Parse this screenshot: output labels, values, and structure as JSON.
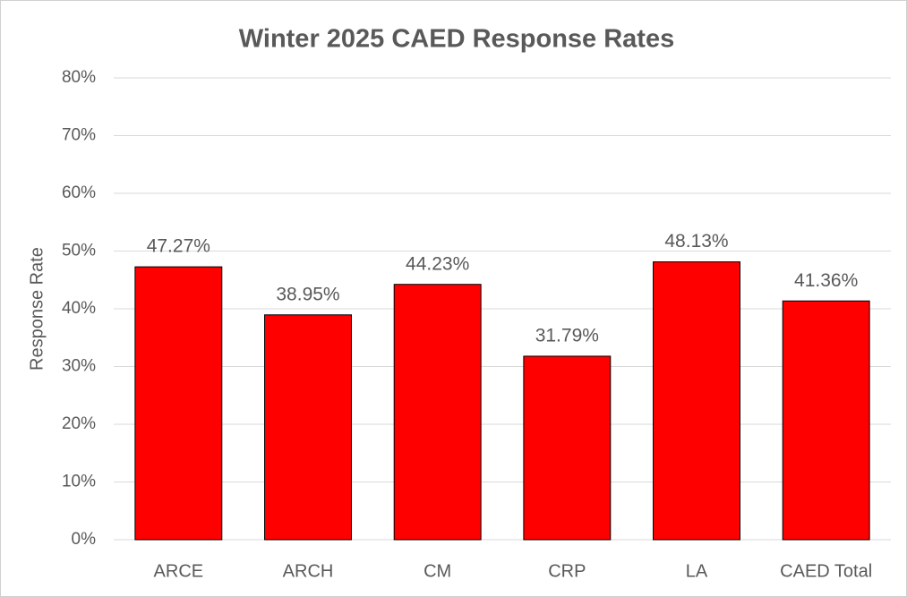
{
  "chart_data": {
    "type": "bar",
    "title": "Winter 2025 CAED Response Rates",
    "y_label": "Response Rate",
    "categories": [
      "ARCE",
      "ARCH",
      "CM",
      "CRP",
      "LA",
      "CAED Total"
    ],
    "values": [
      47.27,
      38.95,
      44.23,
      31.79,
      48.13,
      41.36
    ],
    "value_labels": [
      "47.27%",
      "38.95%",
      "44.23%",
      "31.79%",
      "48.13%",
      "41.36%"
    ],
    "color": "#ff0000",
    "ylim": [
      0,
      80
    ],
    "yticks": [
      {
        "value": 0,
        "label": "0%"
      },
      {
        "value": 10,
        "label": "10%"
      },
      {
        "value": 20,
        "label": "20%"
      },
      {
        "value": 30,
        "label": "30%"
      },
      {
        "value": 40,
        "label": "40%"
      },
      {
        "value": 50,
        "label": "50%"
      },
      {
        "value": 60,
        "label": "60%"
      },
      {
        "value": 70,
        "label": "70%"
      },
      {
        "value": 80,
        "label": "80%"
      }
    ],
    "grid": true
  }
}
